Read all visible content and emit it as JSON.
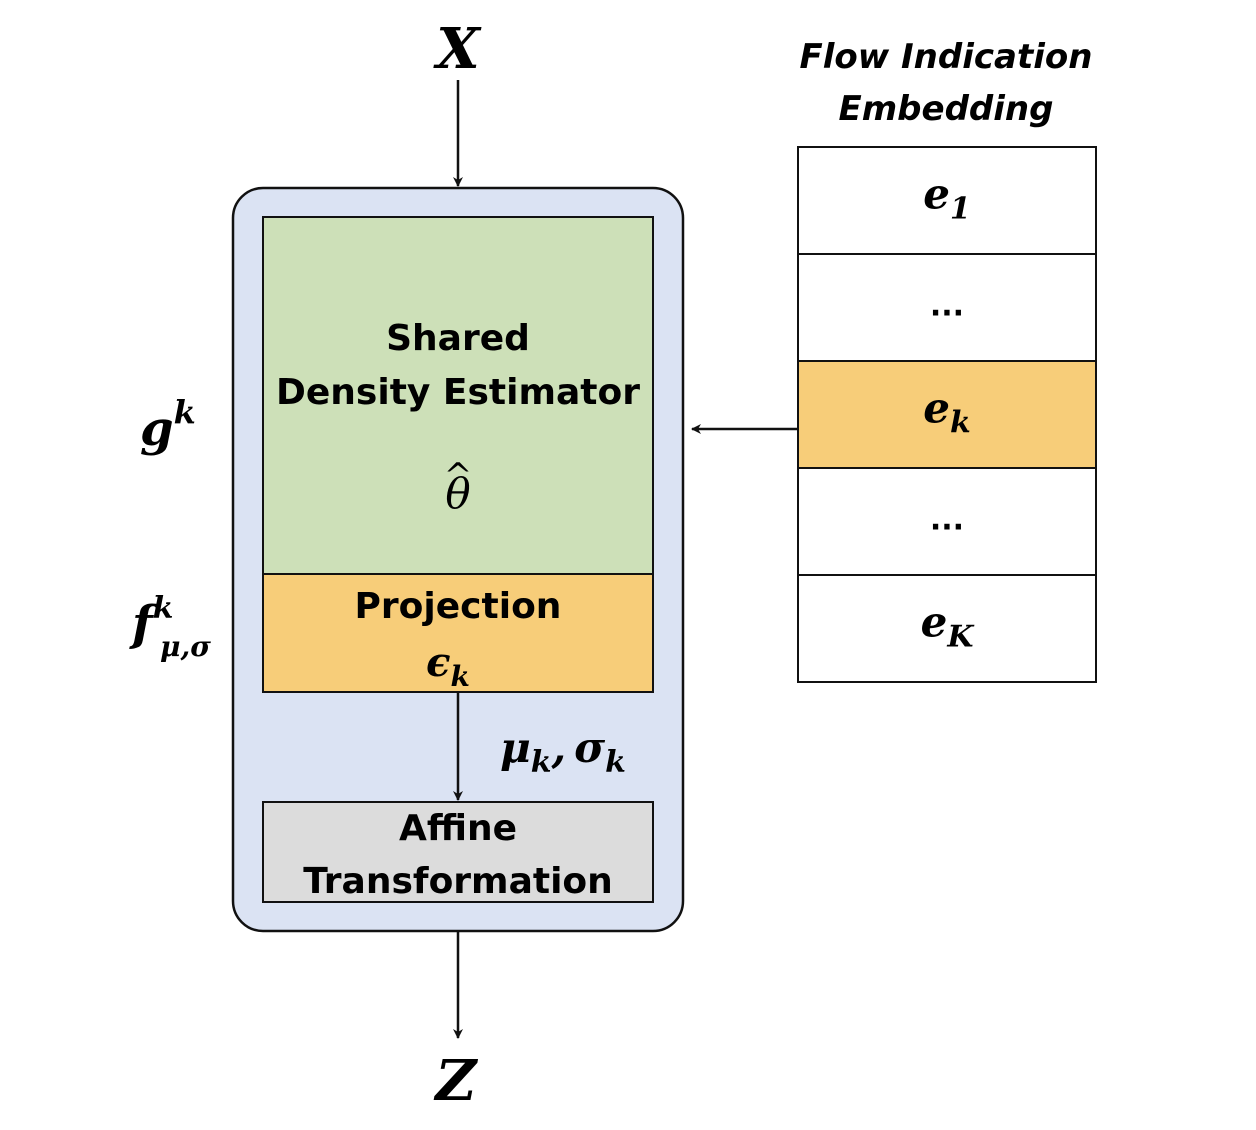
{
  "input_label": "X",
  "output_label": "Z",
  "module_label": {
    "base": "g",
    "sup": "k"
  },
  "projection_fn_label": {
    "base": "f",
    "sup": "k",
    "sub": "μ,σ"
  },
  "shared_estimator": {
    "line1": "Shared",
    "line2": "Density Estimator",
    "param": "θ",
    "param_accent": "^"
  },
  "projection": {
    "title": "Projection",
    "symbol": {
      "base": "ϵ",
      "sub": "k"
    }
  },
  "projection_output": {
    "mu": {
      "base": "μ",
      "sub": "k"
    },
    "sep": ",",
    "sigma": {
      "base": "σ",
      "sub": "k"
    }
  },
  "affine": {
    "line1": "Affine",
    "line2": "Transformation"
  },
  "embedding": {
    "title_line1": "Flow Indication",
    "title_line2": "Embedding",
    "rows": [
      {
        "base": "e",
        "sub": "1",
        "highlight": false
      },
      {
        "text": "...",
        "highlight": false
      },
      {
        "base": "e",
        "sub": "k",
        "highlight": true
      },
      {
        "text": "...",
        "highlight": false
      },
      {
        "base": "e",
        "sub": "K",
        "highlight": false
      }
    ]
  },
  "colors": {
    "module_bg": "#dbe3f3",
    "estimator_bg": "#cde0b8",
    "projection_bg": "#f7cd79",
    "affine_bg": "#dcdcdc",
    "highlight_bg": "#f7cd79",
    "stroke": "#111111"
  }
}
